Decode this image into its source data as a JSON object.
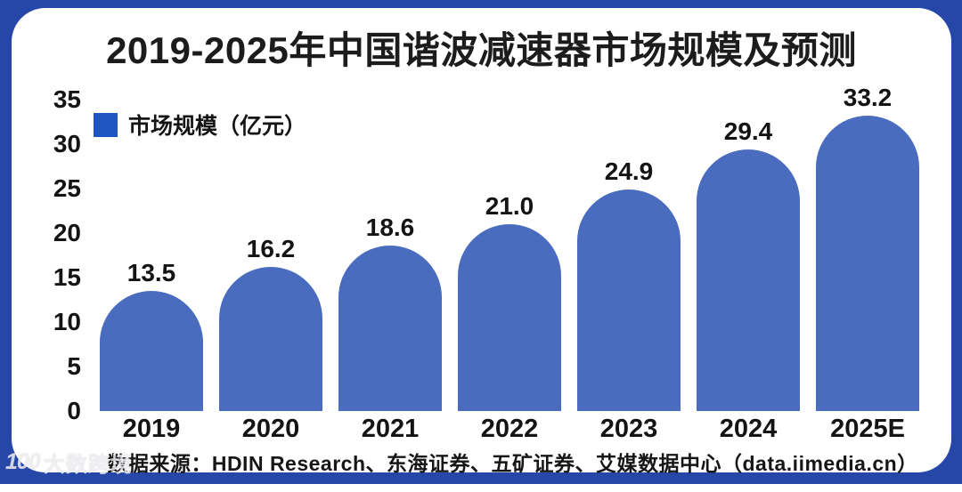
{
  "title": "2019-2025年中国谐波减速器市场规模及预测",
  "legend": {
    "label": "市场规模（亿元）",
    "swatch_color": "#1e55c3"
  },
  "chart_data": {
    "type": "bar",
    "categories": [
      "2019",
      "2020",
      "2021",
      "2022",
      "2023",
      "2024",
      "2025E"
    ],
    "values": [
      13.5,
      16.2,
      18.6,
      21.0,
      24.9,
      29.4,
      33.2
    ],
    "value_labels": [
      "13.5",
      "16.2",
      "18.6",
      "21.0",
      "24.9",
      "29.4",
      "33.2"
    ],
    "title": "2019-2025年中国谐波减速器市场规模及预测",
    "xlabel": "",
    "ylabel": "市场规模（亿元）",
    "ylim": [
      0,
      35
    ],
    "yticks": [
      0,
      5,
      10,
      15,
      20,
      25,
      30,
      35
    ],
    "grid": false,
    "legend_position": "top-left",
    "bar_color": "#4a6cbe"
  },
  "source": "数据来源：HDIN Research、东海证券、五矿证券、艾媒数据中心（data.iimedia.cn）",
  "watermark": {
    "logo": "100",
    "text": "大数跨境"
  },
  "colors": {
    "frame": "#2647a8",
    "panel": "#ffffff",
    "bar": "#4a6cbe",
    "legend_swatch": "#1e55c3",
    "text": "#141414"
  }
}
